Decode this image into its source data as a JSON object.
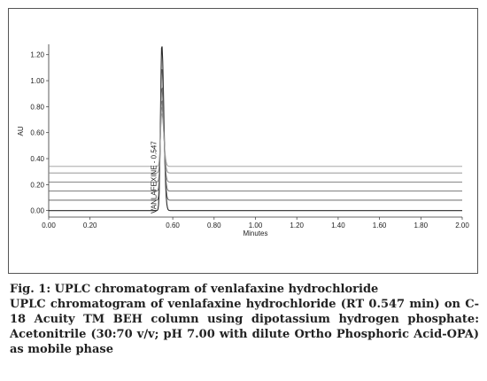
{
  "chart_data": {
    "type": "line",
    "xlabel": "Minutes",
    "ylabel": "AU",
    "xlim": [
      0.0,
      2.0
    ],
    "ylim": [
      -0.05,
      1.28
    ],
    "x_ticks": [
      "0.00",
      "0.20",
      "0.60",
      "0.80",
      "1.00",
      "1.20",
      "1.40",
      "1.60",
      "1.80",
      "2.00"
    ],
    "y_ticks": [
      "0.00",
      "0.20",
      "0.40",
      "0.60",
      "0.80",
      "1.00",
      "1.20"
    ],
    "peak_annotation": "VANLAFEXINE - 0.547",
    "series": [
      {
        "baseline": 0.0,
        "peak_height": 1.28,
        "peak_x": 0.547,
        "color": "#2a2a2a"
      },
      {
        "baseline": 0.08,
        "peak_height": 1.1,
        "peak_x": 0.547,
        "color": "#555555"
      },
      {
        "baseline": 0.15,
        "peak_height": 0.95,
        "peak_x": 0.547,
        "color": "#666666"
      },
      {
        "baseline": 0.22,
        "peak_height": 0.85,
        "peak_x": 0.547,
        "color": "#777777"
      },
      {
        "baseline": 0.29,
        "peak_height": 0.8,
        "peak_x": 0.547,
        "color": "#888888"
      },
      {
        "baseline": 0.34,
        "peak_height": 0.75,
        "peak_x": 0.547,
        "color": "#9a9a9a"
      }
    ]
  },
  "caption": {
    "title": "Fig. 1: UPLC chromatogram of venlafaxine hydrochloride",
    "description": "UPLC chromatogram of venlafaxine hydrochloride (RT 0.547 min) on C-18 Acuity TM BEH column using dipotassium hydrogen phosphate: Acetonitrile (30:70 v/v; pH 7.00 with dilute Ortho Phosphoric Acid-OPA) as mobile phase"
  }
}
